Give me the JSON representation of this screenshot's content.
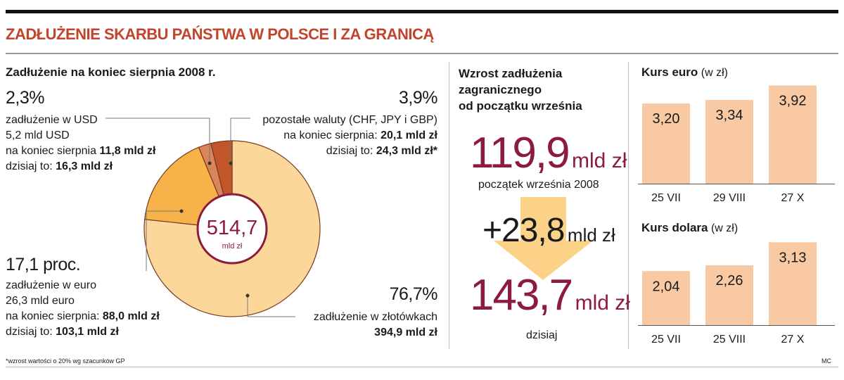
{
  "header": {
    "title": "ZADŁUŻENIE SKARBU PAŃSTWA W POLSCE I ZA GRANICĄ"
  },
  "pie_section": {
    "heading": "Zadłużenie na koniec sierpnia 2008 r.",
    "center_value": "514,7",
    "center_unit": "mld zł",
    "usd": {
      "pct": "2,3%",
      "line1": "zadłużenie w USD",
      "line2": "5,2 mld USD",
      "line3_prefix": "na koniec sierpnia ",
      "line3_value": "11,8 mld zł",
      "line4_prefix": "dzisiaj to: ",
      "line4_value": "16,3 mld zł"
    },
    "other": {
      "pct": "3,9%",
      "line1": "pozostałe waluty (CHF, JPY i GBP)",
      "line2_prefix": "na koniec sierpnia: ",
      "line2_value": "20,1 mld zł",
      "line3_prefix": "dzisiaj to: ",
      "line3_value": "24,3 mld zł*"
    },
    "eur": {
      "pct": "17,1 proc.",
      "line1": "zadłużenie w euro",
      "line2": "26,3 mld euro",
      "line3_prefix": "na koniec sierpnia: ",
      "line3_value": "88,0 mld zł",
      "line4_prefix": "dzisiaj to: ",
      "line4_value": "103,1 mld zł"
    },
    "pln": {
      "pct": "76,7%",
      "line1": "zadłużenie w złotówkach",
      "line2": "394,9 mld zł"
    }
  },
  "growth_section": {
    "heading_line1": "Wzrost zadłużenia",
    "heading_line2": "zagranicznego",
    "heading_line3": "od początku września",
    "start_value": "119,9",
    "start_unit": "mld zł",
    "start_caption": "początek września 2008",
    "delta_value": "+23,8",
    "delta_unit": "mld zł",
    "end_value": "143,7",
    "end_unit": "mld zł",
    "end_caption": "dzisiaj"
  },
  "footnote": "*wzrost wartości o 20% wg szacunków GP",
  "credit": "MC",
  "colors": {
    "title": "#c3432b",
    "maroon": "#8d1b3d",
    "pln_slice": "#fbd79a",
    "eur_slice": "#f7b24a",
    "usd_slice": "#d9845a",
    "other_slice": "#c0562a",
    "bar": "#f8c9a2",
    "arrow": "#fbd288"
  },
  "chart_data": [
    {
      "type": "pie",
      "title": "Zadłużenie na koniec sierpnia 2008 r.",
      "total": 514.7,
      "unit": "mld zł",
      "slices": [
        {
          "label": "zadłużenie w złotówkach",
          "percent": 76.7,
          "value": 394.9
        },
        {
          "label": "zadłużenie w euro",
          "percent": 17.1,
          "value": 88.0
        },
        {
          "label": "zadłużenie w USD",
          "percent": 2.3,
          "value": 11.8
        },
        {
          "label": "pozostałe waluty (CHF, JPY i GBP)",
          "percent": 3.9,
          "value": 20.1
        }
      ]
    },
    {
      "type": "bar",
      "title": "Kurs euro",
      "title_unit": "(w zł)",
      "categories": [
        "25 VII",
        "29 VIII",
        "27 X"
      ],
      "values": [
        3.2,
        3.34,
        3.92
      ],
      "labels": [
        "3,20",
        "3,34",
        "3,92"
      ],
      "ylim": [
        0,
        4.1
      ]
    },
    {
      "type": "bar",
      "title": "Kurs dolara",
      "title_unit": "(w zł)",
      "categories": [
        "25 VII",
        "25 VIII",
        "27 X"
      ],
      "values": [
        2.04,
        2.26,
        3.13
      ],
      "labels": [
        "2,04",
        "2,26",
        "3,13"
      ],
      "ylim": [
        0,
        3.35
      ]
    }
  ]
}
